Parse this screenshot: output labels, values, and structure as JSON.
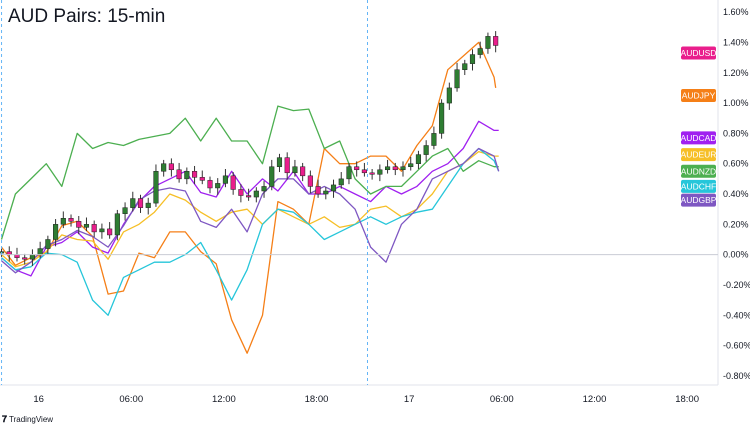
{
  "title": "AUD Pairs: 15-min",
  "footer": {
    "brand": "TradingView",
    "logo_icon": "tradingview-logo-icon"
  },
  "chart_data": {
    "type": "line",
    "title": "AUD Pairs: 15-min",
    "x_tick_labels": [
      "16",
      "06:00",
      "12:00",
      "18:00",
      "17",
      "06:00",
      "12:00",
      "18:00"
    ],
    "x_tick_positions_hours": [
      0,
      6,
      12,
      18,
      24,
      30,
      36,
      42
    ],
    "x_range_hours": [
      -2.5,
      44
    ],
    "y_tick_labels": [
      "1.60%",
      "1.40%",
      "1.20%",
      "1.00%",
      "0.80%",
      "0.60%",
      "0.40%",
      "0.20%",
      "0.00%",
      "-0.20%",
      "-0.40%",
      "-0.60%",
      "-0.80%"
    ],
    "ylim": [
      -0.86,
      1.68
    ],
    "y_unit": "%",
    "grid": false,
    "vertical_dashed_lines_hours": [
      -2.4,
      21.3
    ],
    "zero_line": true,
    "legend": "right-side tags",
    "series": [
      {
        "name": "AUDUSD",
        "color": "#e91e8c",
        "style": "candles",
        "x": [
          -2.4,
          -1.9,
          -1.4,
          -0.9,
          -0.4,
          0.1,
          0.6,
          1.1,
          1.6,
          2.1,
          2.6,
          3.1,
          3.6,
          4.1,
          4.6,
          5.1,
          5.6,
          6.1,
          6.6,
          7.1,
          7.6,
          8.1,
          8.6,
          9.1,
          9.6,
          10.1,
          10.6,
          11.1,
          11.6,
          12.1,
          12.6,
          13.1,
          13.6,
          14.1,
          14.6,
          15.1,
          15.6,
          16.1,
          16.6,
          17.1,
          17.6,
          18.1,
          18.6,
          19.1,
          19.6,
          20.1,
          20.6,
          21.1,
          21.6,
          22.1,
          22.6,
          23.1,
          23.6,
          24.1,
          24.6,
          25.1,
          25.6,
          26.1,
          26.6,
          27.1,
          27.6,
          28.1,
          28.6,
          29.1,
          29.6
        ],
        "values": [
          0.02,
          0.0,
          -0.02,
          -0.03,
          0.0,
          0.04,
          0.1,
          0.2,
          0.24,
          0.22,
          0.18,
          0.2,
          0.15,
          0.17,
          0.13,
          0.27,
          0.31,
          0.37,
          0.31,
          0.34,
          0.55,
          0.6,
          0.56,
          0.5,
          0.55,
          0.51,
          0.49,
          0.44,
          0.47,
          0.52,
          0.43,
          0.39,
          0.38,
          0.42,
          0.45,
          0.58,
          0.64,
          0.54,
          0.58,
          0.52,
          0.45,
          0.4,
          0.42,
          0.46,
          0.5,
          0.58,
          0.56,
          0.54,
          0.53,
          0.56,
          0.58,
          0.56,
          0.58,
          0.6,
          0.66,
          0.72,
          0.8,
          1.0,
          1.1,
          1.22,
          1.26,
          1.32,
          1.36,
          1.44,
          1.38
        ]
      },
      {
        "name": "AUDJPY",
        "color": "#f57f17",
        "x": [
          -2.4,
          -1.5,
          -0.5,
          0.5,
          1.5,
          2.5,
          3.5,
          4.5,
          5.5,
          6.5,
          7.5,
          8.5,
          9.5,
          10.5,
          11.5,
          12.5,
          13.5,
          14.5,
          15.5,
          16.5,
          17.5,
          18.5,
          19.5,
          20.5,
          21.5,
          22.5,
          23.5,
          24.5,
          25.5,
          26.5,
          27.5,
          28.5,
          29.5,
          29.6
        ],
        "values": [
          0.05,
          -0.07,
          -0.02,
          0.01,
          0.19,
          0.22,
          0.12,
          -0.26,
          -0.24,
          0.01,
          -0.02,
          0.15,
          0.15,
          0.02,
          -0.06,
          -0.43,
          -0.65,
          -0.4,
          0.35,
          0.3,
          0.2,
          0.7,
          0.6,
          0.6,
          0.65,
          0.65,
          0.55,
          0.72,
          0.85,
          1.22,
          1.31,
          1.4,
          1.17,
          1.1
        ]
      },
      {
        "name": "AUDCAD",
        "color": "#a020f0",
        "x": [
          -2.4,
          -1.5,
          -0.5,
          0.5,
          1.5,
          2.5,
          3.5,
          4.5,
          5.5,
          6.5,
          7.5,
          8.5,
          9.5,
          10.5,
          11.5,
          12.5,
          13.5,
          14.5,
          15.5,
          16.5,
          17.5,
          18.5,
          19.5,
          20.5,
          21.5,
          22.5,
          23.5,
          24.5,
          25.5,
          26.5,
          27.5,
          28.5,
          29.5,
          29.8
        ],
        "values": [
          -0.02,
          -0.1,
          -0.14,
          0.05,
          0.08,
          0.15,
          0.05,
          0.01,
          0.2,
          0.35,
          0.45,
          0.5,
          0.55,
          0.41,
          0.38,
          0.55,
          0.4,
          0.5,
          0.42,
          0.55,
          0.4,
          0.4,
          0.45,
          0.4,
          0.35,
          0.45,
          0.4,
          0.45,
          0.55,
          0.6,
          0.7,
          0.88,
          0.82,
          0.82
        ]
      },
      {
        "name": "AUDEUR",
        "color": "#f6bf26",
        "x": [
          -2.4,
          -1.5,
          -0.5,
          0.5,
          1.5,
          2.5,
          3.5,
          4.5,
          5.5,
          6.5,
          7.5,
          8.5,
          9.5,
          10.5,
          11.5,
          12.5,
          13.5,
          14.5,
          15.5,
          16.5,
          17.5,
          18.5,
          19.5,
          20.5,
          21.5,
          22.5,
          23.5,
          24.5,
          25.5,
          26.5,
          27.5,
          28.5,
          29.5,
          29.8
        ],
        "values": [
          0.0,
          -0.08,
          -0.05,
          0.02,
          0.13,
          0.1,
          0.09,
          -0.03,
          0.15,
          0.2,
          0.28,
          0.4,
          0.36,
          0.28,
          0.22,
          0.28,
          0.3,
          0.2,
          0.3,
          0.25,
          0.2,
          0.25,
          0.18,
          0.2,
          0.3,
          0.32,
          0.25,
          0.3,
          0.4,
          0.55,
          0.6,
          0.68,
          0.65,
          0.65
        ]
      },
      {
        "name": "AUDNZD",
        "color": "#4caf50",
        "x": [
          -2.4,
          -1.5,
          -0.5,
          0.5,
          1.5,
          2.5,
          3.5,
          4.5,
          5.5,
          6.5,
          7.5,
          8.5,
          9.5,
          10.5,
          11.5,
          12.5,
          13.5,
          14.5,
          15.5,
          16.5,
          17.5,
          18.5,
          19.5,
          20.5,
          21.5,
          22.5,
          23.5,
          24.5,
          25.5,
          26.5,
          27.5,
          28.5,
          29.5,
          29.8
        ],
        "values": [
          0.1,
          0.4,
          0.5,
          0.6,
          0.45,
          0.8,
          0.7,
          0.74,
          0.72,
          0.76,
          0.78,
          0.8,
          0.9,
          0.75,
          0.9,
          0.75,
          0.75,
          0.6,
          0.98,
          0.95,
          0.96,
          0.7,
          0.75,
          0.5,
          0.4,
          0.45,
          0.45,
          0.55,
          0.65,
          0.7,
          0.55,
          0.62,
          0.58,
          0.58
        ]
      },
      {
        "name": "AUDCHF",
        "color": "#26c6da",
        "x": [
          -2.4,
          -1.5,
          -0.5,
          0.5,
          1.5,
          2.5,
          3.5,
          4.5,
          5.5,
          6.5,
          7.5,
          8.5,
          9.5,
          10.5,
          11.5,
          12.5,
          13.5,
          14.5,
          15.5,
          16.5,
          17.5,
          18.5,
          19.5,
          20.5,
          21.5,
          22.5,
          23.5,
          24.5,
          25.5,
          26.5,
          27.5,
          28.5,
          29.5,
          29.8
        ],
        "values": [
          -0.02,
          -0.1,
          -0.08,
          0.01,
          0.0,
          -0.05,
          -0.3,
          -0.4,
          -0.15,
          -0.1,
          -0.05,
          -0.05,
          0.0,
          0.08,
          -0.1,
          -0.3,
          -0.1,
          0.2,
          0.3,
          0.28,
          0.2,
          0.1,
          0.15,
          0.2,
          0.25,
          0.2,
          0.25,
          0.28,
          0.3,
          0.45,
          0.6,
          0.7,
          0.62,
          0.55
        ]
      },
      {
        "name": "AUDGBP",
        "color": "#7e57c2",
        "x": [
          -2.4,
          -1.5,
          -0.5,
          0.5,
          1.5,
          2.5,
          3.5,
          4.5,
          5.5,
          6.5,
          7.5,
          8.5,
          9.5,
          10.5,
          11.5,
          12.5,
          13.5,
          14.5,
          15.5,
          16.5,
          17.5,
          18.5,
          19.5,
          20.5,
          21.5,
          22.5,
          23.5,
          24.5,
          25.5,
          26.5,
          27.5,
          28.5,
          29.5,
          29.8
        ],
        "values": [
          -0.04,
          -0.12,
          -0.05,
          0.06,
          0.1,
          0.16,
          0.12,
          0.05,
          0.19,
          0.36,
          0.42,
          0.44,
          0.42,
          0.22,
          0.18,
          0.3,
          0.15,
          0.4,
          0.5,
          0.5,
          0.4,
          0.45,
          0.4,
          0.3,
          0.05,
          -0.05,
          0.2,
          0.3,
          0.5,
          0.55,
          0.6,
          0.7,
          0.65,
          0.55
        ]
      }
    ],
    "legend_tags": [
      {
        "name": "AUDUSD",
        "color": "#e91e8c",
        "value": 1.33
      },
      {
        "name": "AUDJPY",
        "color": "#f57f17",
        "value": 1.05
      },
      {
        "name": "AUDCAD",
        "color": "#a020f0",
        "value": 0.77
      },
      {
        "name": "AUDEUR",
        "color": "#f6bf26",
        "value": 0.66
      },
      {
        "name": "AUDNZD",
        "color": "#4caf50",
        "value": 0.55
      },
      {
        "name": "AUDCHF",
        "color": "#26c6da",
        "value": 0.45
      },
      {
        "name": "AUDGBP",
        "color": "#7e57c2",
        "value": 0.36
      }
    ]
  }
}
